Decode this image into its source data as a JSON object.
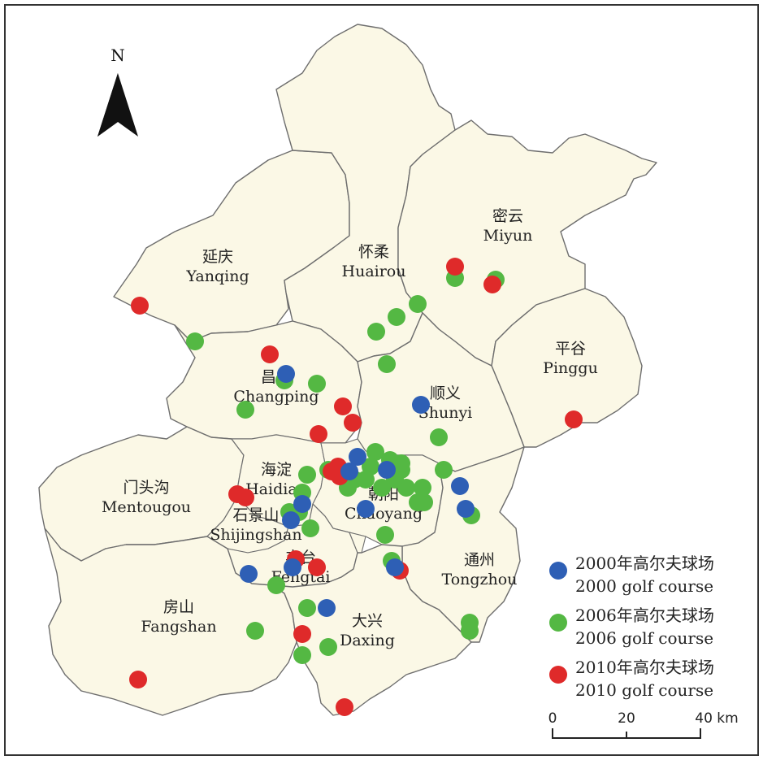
{
  "north_label": "N",
  "districts": [
    {
      "cn": "延庆",
      "en": "Yanqing"
    },
    {
      "cn": "怀柔",
      "en": "Huairou"
    },
    {
      "cn": "密云",
      "en": "Miyun"
    },
    {
      "cn": "平谷",
      "en": "Pinggu"
    },
    {
      "cn": "昌平",
      "en": "Changping"
    },
    {
      "cn": "顺义",
      "en": "Shunyi"
    },
    {
      "cn": "门头沟",
      "en": "Mentougou"
    },
    {
      "cn": "海淀",
      "en": "Haidian"
    },
    {
      "cn": "朝阳",
      "en": "Chaoyang"
    },
    {
      "cn": "石景山",
      "en": "Shijingshan"
    },
    {
      "cn": "丰台",
      "en": "Fengtai"
    },
    {
      "cn": "通州",
      "en": "Tongzhou"
    },
    {
      "cn": "房山",
      "en": "Fangshan"
    },
    {
      "cn": "大兴",
      "en": "Daxing"
    }
  ],
  "legend": [
    {
      "cn": "2000年高尔夫球场",
      "en": "2000 golf course",
      "color": "#2e5fb5"
    },
    {
      "cn": "2006年高尔夫球场",
      "en": "2006 golf course",
      "color": "#54b843"
    },
    {
      "cn": "2010年高尔夫球场",
      "en": "2010 golf course",
      "color": "#df2a2a"
    }
  ],
  "scale": {
    "ticks": [
      "0",
      "20",
      "40 km"
    ]
  },
  "golf_courses": {
    "2000": 14,
    "2006": 42,
    "2010": 19
  }
}
